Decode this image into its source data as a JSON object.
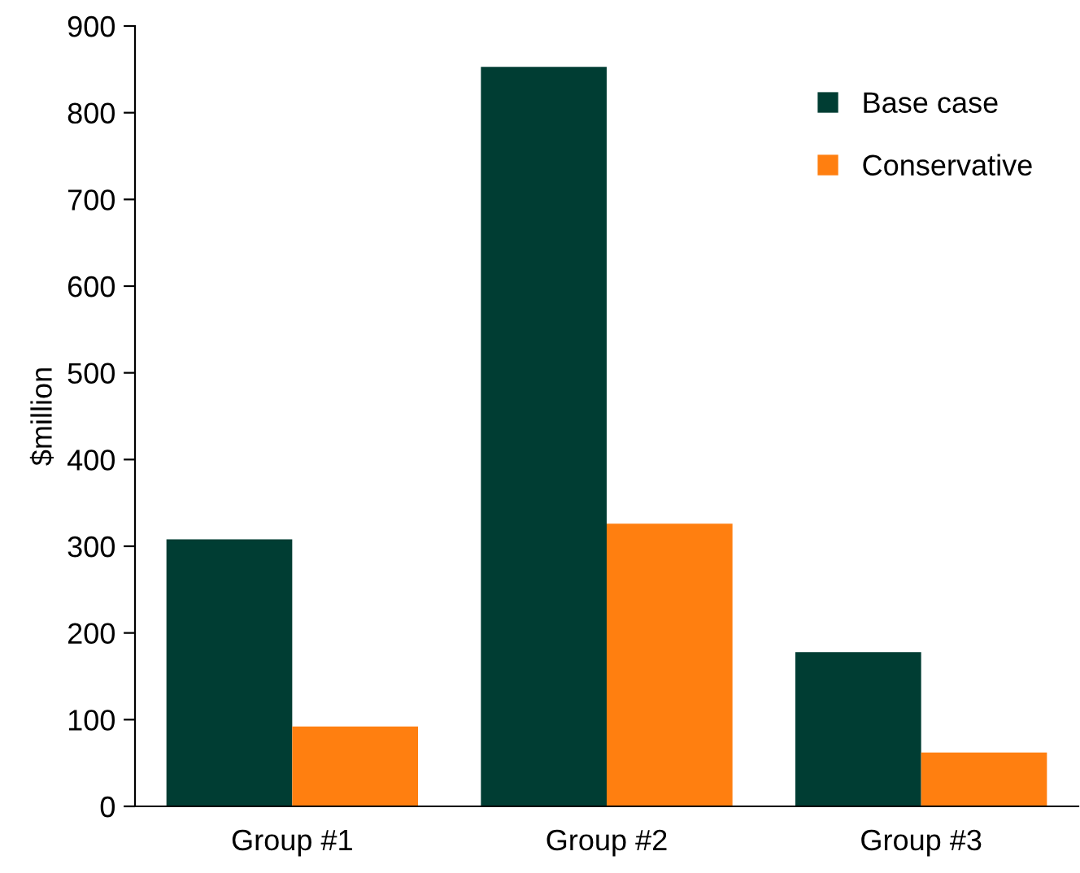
{
  "chart_data": {
    "type": "bar",
    "ylabel": "$million",
    "categories": [
      "Group #1",
      "Group #2",
      "Group #3"
    ],
    "series": [
      {
        "name": "Base case",
        "color": "#003d33",
        "values": [
          308,
          853,
          178
        ]
      },
      {
        "name": "Conservative",
        "color": "#ff7f10",
        "values": [
          92,
          326,
          62
        ]
      }
    ],
    "ylim": [
      0,
      900
    ],
    "yticks": [
      0,
      100,
      200,
      300,
      400,
      500,
      600,
      700,
      800,
      900
    ],
    "grid": false,
    "legend": "top right"
  }
}
